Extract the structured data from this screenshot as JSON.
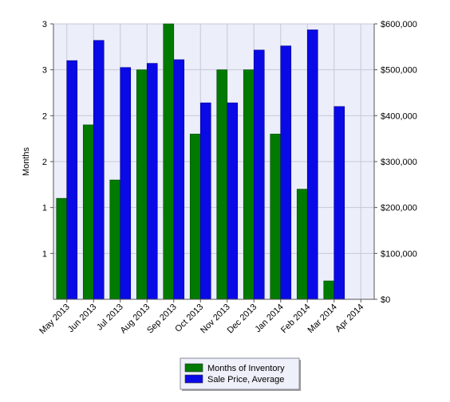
{
  "chart_data": {
    "type": "bar",
    "categories": [
      "May 2013",
      "Jun 2013",
      "Jul 2013",
      "Aug 2013",
      "Sep 2013",
      "Oct 2013",
      "Nov 2013",
      "Dec 2013",
      "Jan 2014",
      "Feb 2014",
      "Mar 2014",
      "Apr 2014"
    ],
    "series": [
      {
        "name": "Months of Inventory",
        "axis": "left",
        "color": "#007a00",
        "values": [
          1.1,
          1.9,
          1.3,
          2.5,
          3.0,
          1.8,
          2.5,
          2.5,
          1.8,
          1.2,
          0.2,
          null
        ]
      },
      {
        "name": "Sale Price, Average",
        "axis": "right",
        "color": "#0a0ae6",
        "values": [
          520000,
          564000,
          505000,
          514000,
          522000,
          428000,
          428000,
          543000,
          552000,
          587000,
          420000,
          null
        ]
      }
    ],
    "y_left": {
      "label": "Months",
      "lim": [
        0,
        3
      ],
      "tick_labels": [
        "1",
        "1",
        "2",
        "2",
        "3",
        "3"
      ]
    },
    "y_right": {
      "label": "",
      "lim": [
        0,
        600000
      ],
      "ticks": [
        0,
        100000,
        200000,
        300000,
        400000,
        500000,
        600000
      ],
      "tick_labels": [
        "$0",
        "$100,000",
        "$200,000",
        "$300,000",
        "$400,000",
        "$500,000",
        "$600,000"
      ]
    },
    "xlabel": "",
    "grid": true,
    "legend_position": "bottom-center",
    "legend": [
      "Months of Inventory",
      "Sale Price, Average"
    ],
    "colors": {
      "plot_background": "#eceefa",
      "grid": "#c8c8d8",
      "frame": "#ffffff"
    }
  }
}
